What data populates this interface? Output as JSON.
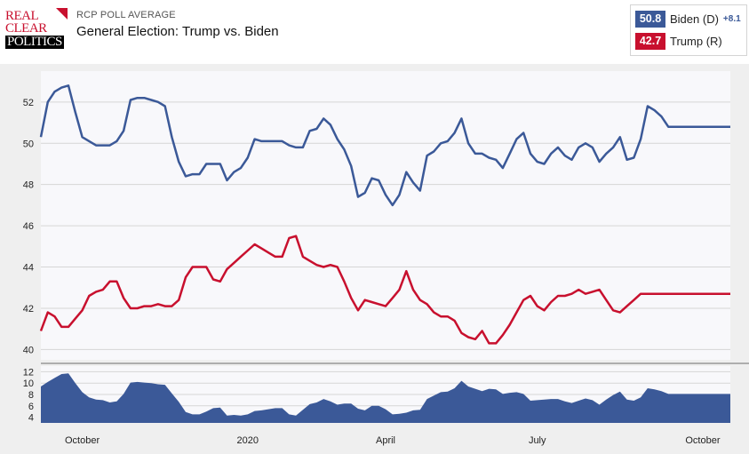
{
  "brand": {
    "line1": "REAL",
    "line2": "CLEAR",
    "line3": "POLITICS"
  },
  "header": {
    "kicker": "RCP POLL AVERAGE",
    "title": "General Election: Trump vs. Biden"
  },
  "legend": {
    "biden": {
      "value": "50.8",
      "name": "Biden (D)",
      "spread": "+8.1",
      "color": "#3b5998"
    },
    "trump": {
      "value": "42.7",
      "name": "Trump (R)",
      "color": "#c8102e"
    }
  },
  "chart_data": {
    "type": "line",
    "title": "General Election: Trump vs. Biden",
    "x_tick_labels": [
      "October",
      "2020",
      "April",
      "July",
      "October"
    ],
    "x_tick_positions": [
      0.06,
      0.3,
      0.5,
      0.72,
      0.96
    ],
    "main": {
      "ylim": [
        39.5,
        53.5
      ],
      "y_ticks": [
        40,
        42,
        44,
        46,
        48,
        50,
        52
      ],
      "x": [
        0,
        0.01,
        0.02,
        0.03,
        0.04,
        0.05,
        0.06,
        0.07,
        0.08,
        0.09,
        0.1,
        0.11,
        0.12,
        0.13,
        0.14,
        0.15,
        0.16,
        0.17,
        0.18,
        0.19,
        0.2,
        0.21,
        0.22,
        0.23,
        0.24,
        0.25,
        0.26,
        0.27,
        0.28,
        0.29,
        0.3,
        0.31,
        0.32,
        0.33,
        0.34,
        0.35,
        0.36,
        0.37,
        0.38,
        0.39,
        0.4,
        0.41,
        0.42,
        0.43,
        0.44,
        0.45,
        0.46,
        0.47,
        0.48,
        0.49,
        0.5,
        0.51,
        0.52,
        0.53,
        0.54,
        0.55,
        0.56,
        0.57,
        0.58,
        0.59,
        0.6,
        0.61,
        0.62,
        0.63,
        0.64,
        0.65,
        0.66,
        0.67,
        0.68,
        0.69,
        0.7,
        0.71,
        0.72,
        0.73,
        0.74,
        0.75,
        0.76,
        0.77,
        0.78,
        0.79,
        0.8,
        0.81,
        0.82,
        0.83,
        0.84,
        0.85,
        0.86,
        0.87,
        0.88,
        0.89,
        0.9,
        0.91,
        0.92,
        0.93,
        0.94,
        0.95,
        0.96,
        0.97,
        0.98,
        0.99,
        1.0
      ],
      "series": [
        {
          "name": "Biden (D)",
          "color": "#3b5998",
          "values": [
            50.3,
            52,
            52.5,
            52.7,
            52.8,
            51.5,
            50.3,
            50.1,
            49.9,
            49.9,
            49.9,
            50.1,
            50.6,
            52.1,
            52.2,
            52.2,
            52.1,
            52,
            51.8,
            50.3,
            49.1,
            48.4,
            48.5,
            48.5,
            49,
            49,
            49,
            48.2,
            48.6,
            48.8,
            49.3,
            50.2,
            50.1,
            50.1,
            50.1,
            50.1,
            49.9,
            49.8,
            49.8,
            50.6,
            50.7,
            51.2,
            50.9,
            50.2,
            49.7,
            48.9,
            47.4,
            47.6,
            48.3,
            48.2,
            47.5,
            47,
            47.5,
            48.6,
            48.1,
            47.7,
            49.4,
            49.6,
            50,
            50.1,
            50.5,
            51.2,
            50,
            49.5,
            49.5,
            49.3,
            49.2,
            48.8,
            49.5,
            50.2,
            50.5,
            49.5,
            49.1,
            49,
            49.5,
            49.8,
            49.4,
            49.2,
            49.8,
            50,
            49.8,
            49.1,
            49.5,
            49.8,
            50.3,
            49.2,
            49.3,
            50.2,
            51.8,
            51.6,
            51.3,
            50.8,
            50.8,
            50.8,
            50.8,
            50.8,
            50.8,
            50.8,
            50.8,
            50.8,
            50.8
          ]
        },
        {
          "name": "Trump (R)",
          "color": "#c8102e",
          "values": [
            40.9,
            41.8,
            41.6,
            41.1,
            41.1,
            41.5,
            41.9,
            42.6,
            42.8,
            42.9,
            43.3,
            43.3,
            42.5,
            42,
            42,
            42.1,
            42.1,
            42.2,
            42.1,
            42.1,
            42.4,
            43.5,
            44,
            44,
            44,
            43.4,
            43.3,
            43.9,
            44.2,
            44.5,
            44.8,
            45.1,
            44.9,
            44.7,
            44.5,
            44.5,
            45.4,
            45.5,
            44.5,
            44.3,
            44.1,
            44,
            44.1,
            44,
            43.3,
            42.5,
            41.9,
            42.4,
            42.3,
            42.2,
            42.1,
            42.5,
            42.9,
            43.8,
            42.9,
            42.4,
            42.2,
            41.8,
            41.6,
            41.6,
            41.4,
            40.8,
            40.6,
            40.5,
            40.9,
            40.3,
            40.3,
            40.7,
            41.2,
            41.8,
            42.4,
            42.6,
            42.1,
            41.9,
            42.3,
            42.6,
            42.6,
            42.7,
            42.9,
            42.7,
            42.8,
            42.9,
            42.4,
            41.9,
            41.8,
            42.1,
            42.4,
            42.7,
            42.7,
            42.7,
            42.7,
            42.7,
            42.7,
            42.7,
            42.7,
            42.7,
            42.7,
            42.7,
            42.7,
            42.7,
            42.7
          ]
        }
      ]
    },
    "spread": {
      "name": "Spread",
      "color": "#3b5998",
      "ylim": [
        3,
        13
      ],
      "y_ticks": [
        4,
        6,
        8,
        10,
        12
      ],
      "values": [
        9.4,
        10.2,
        10.9,
        11.6,
        11.7,
        10,
        8.4,
        7.5,
        7.1,
        7,
        6.6,
        6.8,
        8.1,
        10.1,
        10.2,
        10.1,
        10,
        9.8,
        9.7,
        8.2,
        6.7,
        4.9,
        4.5,
        4.5,
        5,
        5.6,
        5.7,
        4.3,
        4.4,
        4.3,
        4.5,
        5.1,
        5.2,
        5.4,
        5.6,
        5.6,
        4.5,
        4.3,
        5.3,
        6.3,
        6.6,
        7.2,
        6.8,
        6.2,
        6.4,
        6.4,
        5.5,
        5.2,
        6,
        6,
        5.4,
        4.5,
        4.6,
        4.8,
        5.2,
        5.3,
        7.2,
        7.8,
        8.4,
        8.5,
        9.1,
        10.4,
        9.4,
        9,
        8.6,
        9,
        8.9,
        8.1,
        8.3,
        8.4,
        8.1,
        6.9,
        7,
        7.1,
        7.2,
        7.2,
        6.8,
        6.5,
        6.9,
        7.3,
        7,
        6.2,
        7.1,
        7.9,
        8.5,
        7.1,
        6.9,
        7.5,
        9.1,
        8.9,
        8.6,
        8.1,
        8.1,
        8.1,
        8.1,
        8.1,
        8.1,
        8.1,
        8.1,
        8.1,
        8.1
      ]
    }
  }
}
